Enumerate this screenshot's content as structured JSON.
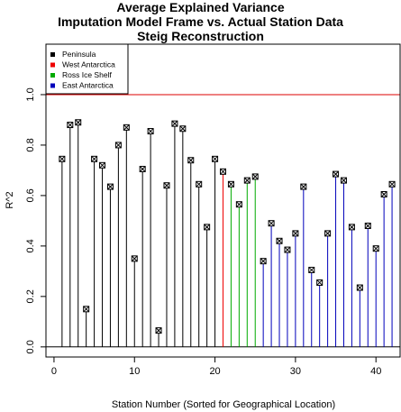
{
  "chart_data": {
    "type": "scatter",
    "style": "vertical lines (histogram-like) with square point markers",
    "title_lines": [
      "Average Explained Variance",
      "Imputation Model Frame vs. Actual Station Data",
      "Steig Reconstruction"
    ],
    "xlabel": "Station Number (Sorted for Geographical Location)",
    "ylabel": "R^2",
    "xlim": [
      -1,
      43
    ],
    "ylim": [
      -0.04,
      1.2
    ],
    "x_ticks": [
      0,
      10,
      20,
      30,
      40
    ],
    "y_ticks": [
      0.0,
      0.2,
      0.4,
      0.6,
      0.8,
      1.0
    ],
    "y_tick_labels": [
      "0.0",
      "0.2",
      "0.4",
      "0.6",
      "0.8",
      "1.0"
    ],
    "reference_lines": [
      {
        "y": 1.0,
        "color": "#dd0000"
      },
      {
        "y": 0.0,
        "color": "#000000"
      }
    ],
    "legend": {
      "position": "top-left",
      "entries": [
        {
          "label": "Peninsula",
          "color": "#000000"
        },
        {
          "label": "West Antarctica",
          "color": "#ee0000"
        },
        {
          "label": "Ross Ice Shelf",
          "color": "#00aa00"
        },
        {
          "label": "East Antarctica",
          "color": "#0000bb"
        }
      ]
    },
    "series": [
      {
        "name": "Peninsula",
        "color": "#000000",
        "x": [
          1,
          2,
          3,
          4,
          5,
          6,
          7,
          8,
          9,
          10,
          11,
          12,
          13,
          14,
          15,
          16,
          17,
          18,
          19,
          20
        ],
        "y": [
          0.745,
          0.88,
          0.89,
          0.15,
          0.745,
          0.72,
          0.635,
          0.8,
          0.87,
          0.35,
          0.705,
          0.855,
          0.065,
          0.64,
          0.885,
          0.865,
          0.74,
          0.645,
          0.475,
          0.745
        ]
      },
      {
        "name": "West Antarctica",
        "color": "#ee0000",
        "x": [
          21
        ],
        "y": [
          0.695
        ]
      },
      {
        "name": "Ross Ice Shelf",
        "color": "#00aa00",
        "x": [
          22,
          23,
          24,
          25
        ],
        "y": [
          0.645,
          0.565,
          0.66,
          0.675
        ]
      },
      {
        "name": "East Antarctica",
        "color": "#0000bb",
        "x": [
          26,
          27,
          28,
          29,
          30,
          31,
          32,
          33,
          34,
          35,
          36,
          37,
          38,
          39,
          40,
          41,
          42
        ],
        "y": [
          0.34,
          0.49,
          0.42,
          0.385,
          0.45,
          0.635,
          0.305,
          0.255,
          0.45,
          0.685,
          0.66,
          0.475,
          0.235,
          0.48,
          0.39,
          0.605,
          0.645
        ]
      }
    ]
  }
}
